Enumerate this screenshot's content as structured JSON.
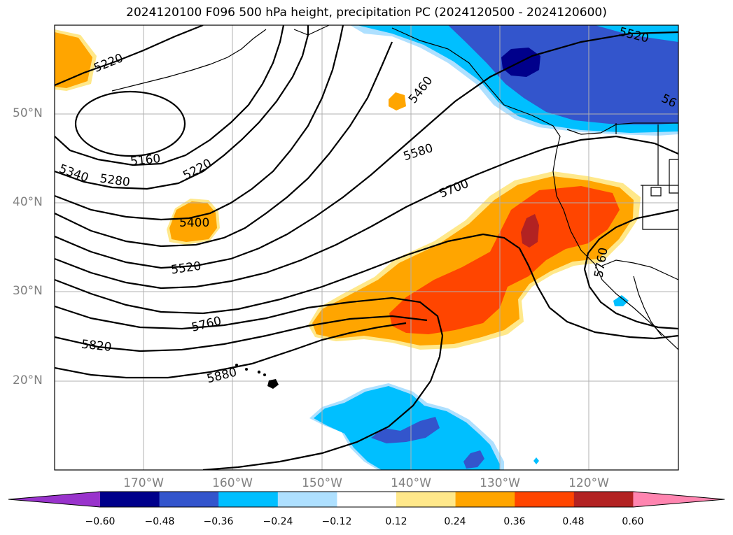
{
  "title": "2024120100 F096 500 hPa height, precipitation PC (2024120500 - 2024120600)",
  "map": {
    "projection": "lat-lon",
    "lon_range": [
      -180,
      -110
    ],
    "lat_range": [
      10,
      60
    ],
    "lat_ticks": [
      "50°N",
      "40°N",
      "30°N",
      "20°N"
    ],
    "lon_ticks": [
      "170°W",
      "160°W",
      "150°W",
      "140°W",
      "130°W",
      "120°W"
    ],
    "grid": true
  },
  "contours": {
    "variable": "500 hPa height",
    "labels": [
      "5220",
      "5160",
      "5220",
      "5340",
      "5280",
      "5400",
      "5520",
      "5460",
      "5580",
      "5700",
      "5760",
      "5820",
      "5880",
      "5520",
      "56",
      "5760"
    ]
  },
  "colorbar": {
    "ticks": [
      "−0.60",
      "−0.48",
      "−0.36",
      "−0.24",
      "−0.12",
      "0.12",
      "0.24",
      "0.36",
      "0.48",
      "0.60"
    ],
    "colors": [
      "#9933cc",
      "#00008b",
      "#3355cc",
      "#00bfff",
      "#aee0ff",
      "#ffffff",
      "#ffe88a",
      "#ffa500",
      "#ff4500",
      "#b22222",
      "#ff85b0"
    ]
  }
}
